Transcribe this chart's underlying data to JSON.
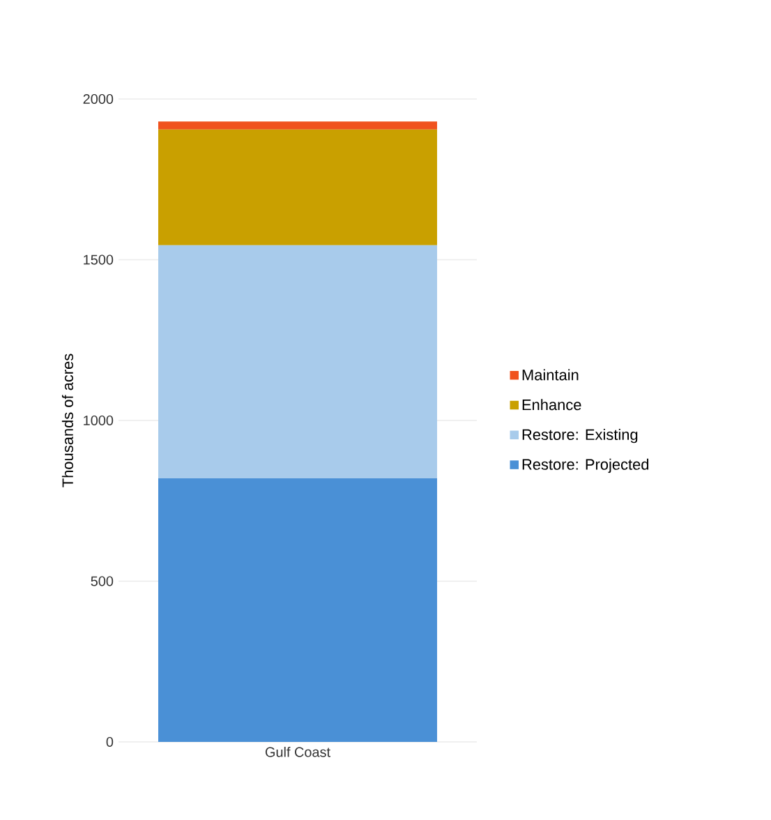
{
  "chart_data": {
    "type": "bar",
    "stacked": true,
    "ylabel": "Thousands of acres",
    "categories": [
      "Gulf Coast"
    ],
    "series": [
      {
        "name": "Restore: Projected",
        "color": "#4a90d6",
        "values": [
          820
        ]
      },
      {
        "name": "Restore: Existing",
        "color": "#a8cbeb",
        "values": [
          725
        ]
      },
      {
        "name": "Enhance",
        "color": "#c9a000",
        "values": [
          360
        ]
      },
      {
        "name": "Maintain",
        "color": "#f0521e",
        "values": [
          25
        ]
      }
    ],
    "ylim": [
      0,
      2000
    ],
    "yticks": [
      0,
      500,
      1000,
      1500,
      2000
    ],
    "grid": "y",
    "legend": "right"
  }
}
